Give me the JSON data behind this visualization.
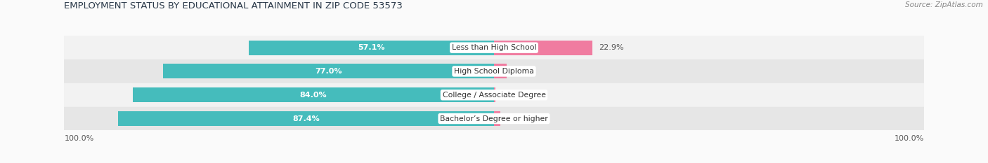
{
  "title": "EMPLOYMENT STATUS BY EDUCATIONAL ATTAINMENT IN ZIP CODE 53573",
  "source": "Source: ZipAtlas.com",
  "categories": [
    "Less than High School",
    "High School Diploma",
    "College / Associate Degree",
    "Bachelor’s Degree or higher"
  ],
  "labor_force": [
    57.1,
    77.0,
    84.0,
    87.4
  ],
  "unemployed": [
    22.9,
    2.9,
    0.4,
    1.5
  ],
  "labor_force_color": "#45BCBC",
  "unemployed_color": "#F07CA0",
  "row_bg_colors_light": "#F2F2F2",
  "row_bg_colors_dark": "#E6E6E6",
  "axis_label_left": "100.0%",
  "axis_label_right": "100.0%",
  "figsize": [
    14.06,
    2.33
  ],
  "dpi": 100,
  "bg_color": "#FAFAFA"
}
